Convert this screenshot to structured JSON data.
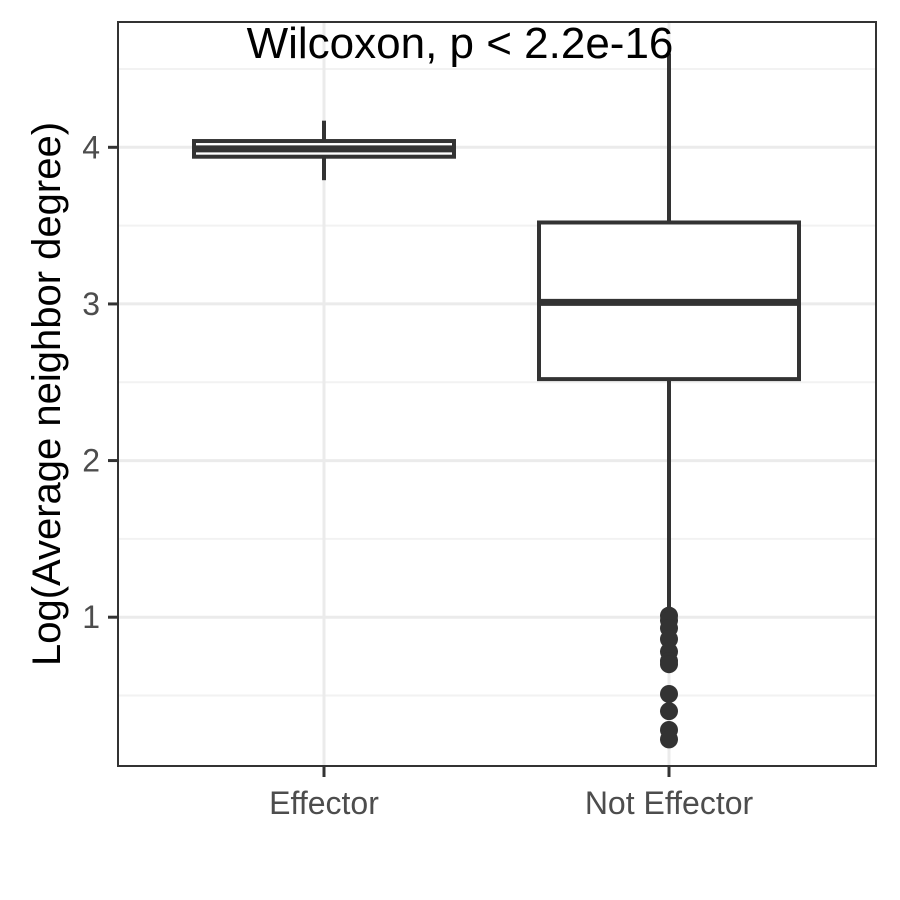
{
  "chart_data": {
    "type": "boxplot",
    "title": "",
    "xlabel": "",
    "ylabel": "Log(Average neighbor degree)",
    "annotation": "Wilcoxon, p < 2.2e-16",
    "categories": [
      "Effector",
      "Not Effector"
    ],
    "ylim": [
      0.05,
      4.8
    ],
    "yticks": [
      1,
      2,
      3,
      4
    ],
    "grid": true,
    "legend": "none",
    "boxes": [
      {
        "category": "Effector",
        "whisker_low": 3.79,
        "q1": 3.94,
        "median": 3.99,
        "q3": 4.04,
        "whisker_high": 4.17,
        "outliers": []
      },
      {
        "category": "Not Effector",
        "whisker_low": 1.03,
        "q1": 2.52,
        "median": 3.01,
        "q3": 3.52,
        "whisker_high": 4.6,
        "outliers": [
          1.01,
          0.98,
          0.93,
          0.86,
          0.78,
          0.72,
          0.7,
          0.51,
          0.4,
          0.28,
          0.22
        ]
      }
    ],
    "colors": {
      "box_stroke": "#333333",
      "box_fill": "#ffffff",
      "panel_border": "#333333",
      "grid_major": "#ebebeb",
      "grid_minor": "#f2f2f2",
      "tick_text": "#4d4d4d",
      "title_text": "#000000"
    }
  }
}
